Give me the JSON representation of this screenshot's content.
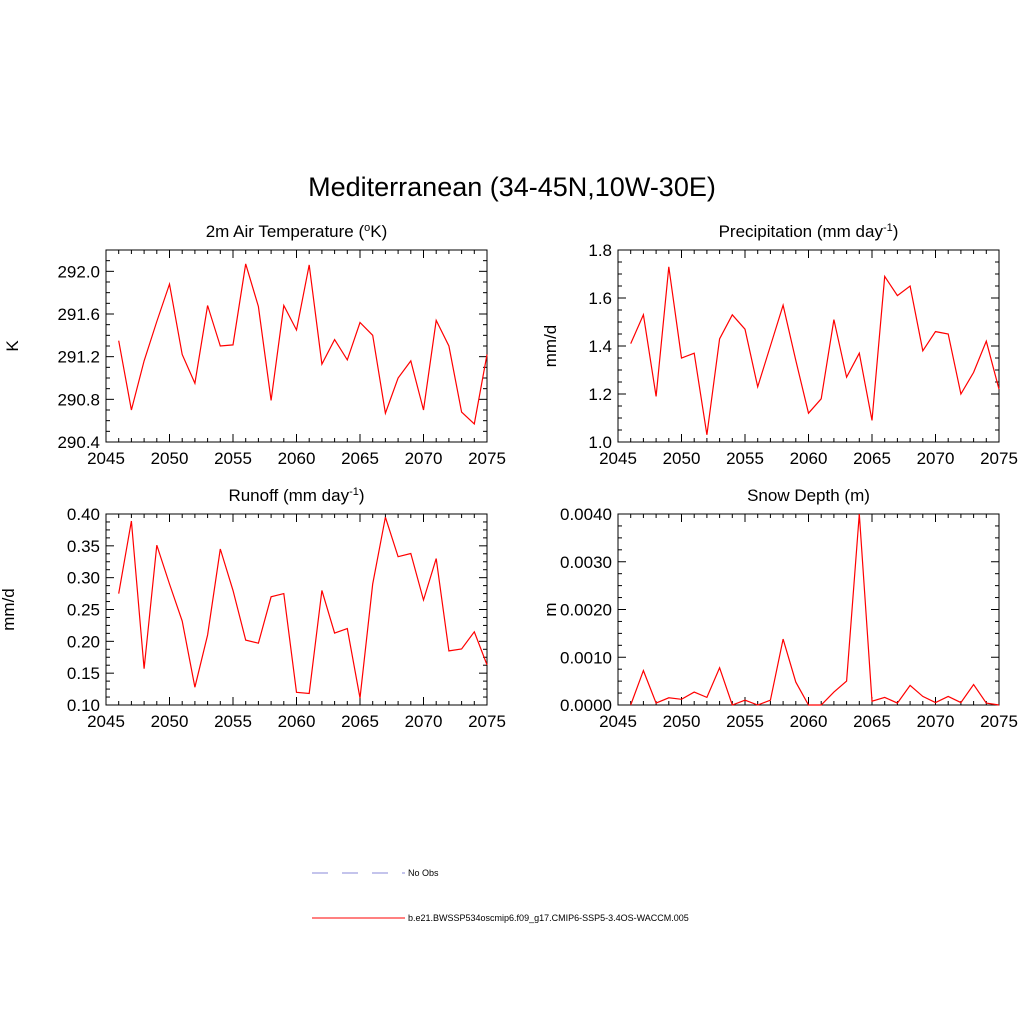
{
  "figure": {
    "title": "Mediterranean (34-45N,10W-30E)",
    "legend": [
      {
        "label": "No Obs",
        "color": "#a0a0e0",
        "style": "dashed"
      },
      {
        "label": "b.e21.BWSSP534oscmip6.f09_g17.CMIP6-SSP5-3.4OS-WACCM.005",
        "color": "#ff0000",
        "style": "solid"
      }
    ]
  },
  "chart_data": [
    {
      "type": "line",
      "title": "2m Air Temperature (",
      "title_sup": "o",
      "title_suffix": "K)",
      "ylabel": "K",
      "xlim": [
        2045,
        2075
      ],
      "ylim": [
        290.4,
        292.2
      ],
      "xticks": [
        2045,
        2050,
        2055,
        2060,
        2065,
        2070,
        2075
      ],
      "yticks": [
        290.4,
        290.8,
        291.2,
        291.6,
        292.0
      ],
      "ytick_labels": [
        "290.4",
        "290.8",
        "291.2",
        "291.6",
        "292.0"
      ],
      "x": [
        2046,
        2047,
        2048,
        2049,
        2050,
        2051,
        2052,
        2053,
        2054,
        2055,
        2056,
        2057,
        2058,
        2059,
        2060,
        2061,
        2062,
        2063,
        2064,
        2065,
        2066,
        2067,
        2068,
        2069,
        2070,
        2071,
        2072,
        2073,
        2074,
        2075
      ],
      "values": [
        291.35,
        290.7,
        291.16,
        291.53,
        291.88,
        291.22,
        290.95,
        291.68,
        291.3,
        291.31,
        292.07,
        291.67,
        290.79,
        291.68,
        291.45,
        292.06,
        291.13,
        291.36,
        291.17,
        291.52,
        291.4,
        290.67,
        291.0,
        291.16,
        290.7,
        291.54,
        291.3,
        290.68,
        290.57,
        291.22
      ],
      "series_color": "#ff0000"
    },
    {
      "type": "line",
      "title": "Precipitation (mm day",
      "title_sup": "-1",
      "title_suffix": ")",
      "ylabel": "mm/d",
      "xlim": [
        2045,
        2075
      ],
      "ylim": [
        1.0,
        1.8
      ],
      "xticks": [
        2045,
        2050,
        2055,
        2060,
        2065,
        2070,
        2075
      ],
      "yticks": [
        1.0,
        1.2,
        1.4,
        1.6,
        1.8
      ],
      "ytick_labels": [
        "1.0",
        "1.2",
        "1.4",
        "1.6",
        "1.8"
      ],
      "x": [
        2046,
        2047,
        2048,
        2049,
        2050,
        2051,
        2052,
        2053,
        2054,
        2055,
        2056,
        2057,
        2058,
        2059,
        2060,
        2061,
        2062,
        2063,
        2064,
        2065,
        2066,
        2067,
        2068,
        2069,
        2070,
        2071,
        2072,
        2073,
        2074,
        2075
      ],
      "values": [
        1.41,
        1.53,
        1.19,
        1.73,
        1.35,
        1.37,
        1.03,
        1.43,
        1.53,
        1.47,
        1.23,
        1.4,
        1.57,
        1.34,
        1.12,
        1.18,
        1.51,
        1.27,
        1.37,
        1.09,
        1.69,
        1.61,
        1.65,
        1.38,
        1.46,
        1.45,
        1.2,
        1.29,
        1.42,
        1.22
      ],
      "series_color": "#ff0000"
    },
    {
      "type": "line",
      "title": "Runoff (mm day",
      "title_sup": "-1",
      "title_suffix": ")",
      "ylabel": "mm/d",
      "xlim": [
        2045,
        2075
      ],
      "ylim": [
        0.1,
        0.4
      ],
      "xticks": [
        2045,
        2050,
        2055,
        2060,
        2065,
        2070,
        2075
      ],
      "yticks": [
        0.1,
        0.15,
        0.2,
        0.25,
        0.3,
        0.35,
        0.4
      ],
      "ytick_labels": [
        "0.10",
        "0.15",
        "0.20",
        "0.25",
        "0.30",
        "0.35",
        "0.40"
      ],
      "x": [
        2046,
        2047,
        2048,
        2049,
        2050,
        2051,
        2052,
        2053,
        2054,
        2055,
        2056,
        2057,
        2058,
        2059,
        2060,
        2061,
        2062,
        2063,
        2064,
        2065,
        2066,
        2067,
        2068,
        2069,
        2070,
        2071,
        2072,
        2073,
        2074,
        2075
      ],
      "values": [
        0.275,
        0.389,
        0.157,
        0.351,
        0.29,
        0.232,
        0.128,
        0.21,
        0.345,
        0.28,
        0.202,
        0.197,
        0.27,
        0.275,
        0.12,
        0.118,
        0.28,
        0.213,
        0.22,
        0.111,
        0.29,
        0.395,
        0.333,
        0.338,
        0.265,
        0.33,
        0.185,
        0.188,
        0.215,
        0.163
      ],
      "series_color": "#ff0000"
    },
    {
      "type": "line",
      "title": "Snow Depth (m)",
      "title_sup": "",
      "title_suffix": "",
      "ylabel": "m",
      "xlim": [
        2045,
        2075
      ],
      "ylim": [
        0.0,
        0.004
      ],
      "xticks": [
        2045,
        2050,
        2055,
        2060,
        2065,
        2070,
        2075
      ],
      "yticks": [
        0.0,
        0.001,
        0.002,
        0.003,
        0.004
      ],
      "ytick_labels": [
        "0.0000",
        "0.0010",
        "0.0020",
        "0.0030",
        "0.0040"
      ],
      "x": [
        2046,
        2047,
        2048,
        2049,
        2050,
        2051,
        2052,
        2053,
        2054,
        2055,
        2056,
        2057,
        2058,
        2059,
        2060,
        2061,
        2062,
        2063,
        2064,
        2065,
        2066,
        2067,
        2068,
        2069,
        2070,
        2071,
        2072,
        2073,
        2074,
        2075
      ],
      "values": [
        0.0,
        0.00072,
        4e-05,
        0.00015,
        0.00012,
        0.00027,
        0.00016,
        0.00078,
        0.0,
        0.0001,
        0.0,
        0.0001,
        0.00138,
        0.00048,
        0.0,
        0.0,
        0.00027,
        0.0005,
        0.004,
        8e-05,
        0.00016,
        4e-05,
        0.00041,
        0.00018,
        5e-05,
        0.00018,
        5e-05,
        0.00043,
        4e-05,
        0.0
      ],
      "series_color": "#ff0000"
    }
  ]
}
